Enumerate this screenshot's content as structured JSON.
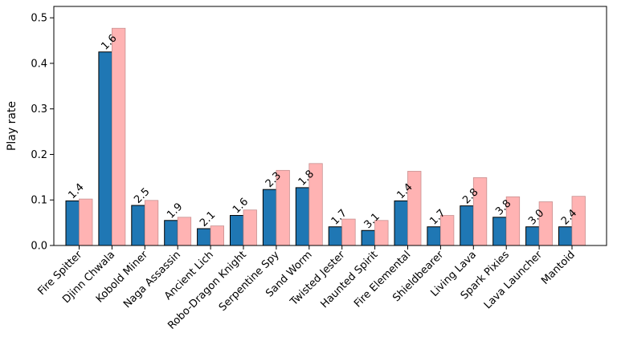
{
  "chart_data": {
    "type": "bar",
    "title": "",
    "xlabel": "",
    "ylabel": "Play rate",
    "ylim": [
      0,
      0.525
    ],
    "yticks": [
      0.0,
      0.1,
      0.2,
      0.3,
      0.4,
      0.5
    ],
    "ytick_labels": [
      "0.0",
      "0.1",
      "0.2",
      "0.3",
      "0.4",
      "0.5"
    ],
    "grid": false,
    "legend": "none",
    "categories": [
      "Fire Spitter",
      "Djinn Chwala",
      "Kobold Miner",
      "Naga Assassin",
      "Ancient Lich",
      "Robo-Dragon Knight",
      "Serpentine Spy",
      "Sand Worm",
      "Twisted Jester",
      "Haunted Spirit",
      "Fire Elemental",
      "Shieldbearer",
      "Living Lava",
      "Spark Pixies",
      "Lava Launcher",
      "Mantoid"
    ],
    "series": [
      {
        "color": "#1f77b4",
        "values": [
          0.098,
          0.425,
          0.088,
          0.055,
          0.037,
          0.066,
          0.123,
          0.127,
          0.041,
          0.033,
          0.098,
          0.041,
          0.087,
          0.062,
          0.041,
          0.041
        ],
        "labels": [
          "1.4",
          "1.6",
          "2.5",
          "1.9",
          "2.1",
          "1.6",
          "2.3",
          "1.8",
          "1.7",
          "3.1",
          "1.4",
          "1.7",
          "2.8",
          "3.8",
          "3.0",
          "2.4"
        ]
      },
      {
        "color": "#ffb3b3",
        "values": [
          0.102,
          0.477,
          0.099,
          0.062,
          0.043,
          0.078,
          0.165,
          0.18,
          0.058,
          0.055,
          0.163,
          0.066,
          0.149,
          0.107,
          0.096,
          0.108
        ]
      }
    ]
  }
}
